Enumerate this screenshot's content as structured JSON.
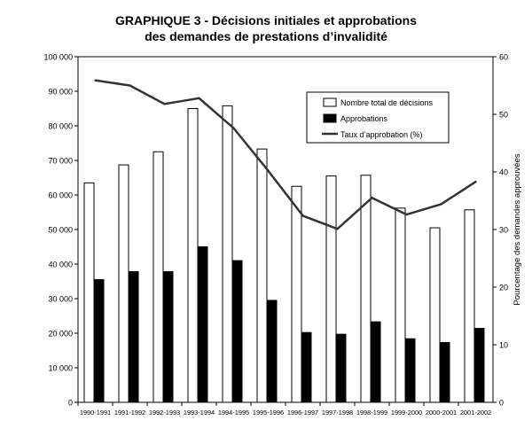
{
  "chart_data": {
    "type": "bar",
    "title_line1": "GRAPHIQUE 3 - Décisions initiales et approbations",
    "title_line2": "des demandes de prestations d’invalidité",
    "xlabel": "",
    "ylabel": "",
    "y2label": "Pourcentage des demandes approuvées",
    "ylim": [
      0,
      100000
    ],
    "y2lim": [
      0,
      60
    ],
    "yticks": [
      "0",
      "10 000",
      "20 000",
      "30 000",
      "40 000",
      "50 000",
      "60 000",
      "70 000",
      "80 000",
      "90 000",
      "100 000"
    ],
    "y2ticks": [
      "0",
      "10",
      "20",
      "30",
      "40",
      "50",
      "60"
    ],
    "categories": [
      "1990-1991",
      "1991-1992",
      "1992-1993",
      "1993-1994",
      "1994-1995",
      "1995-1996",
      "1996-1997",
      "1997-1998",
      "1998-1999",
      "1999-2000",
      "2000-2001",
      "2001-2002"
    ],
    "series": [
      {
        "name": "Nombre total de décisions",
        "kind": "bar",
        "color": "#ffffff",
        "values": [
          63500,
          68700,
          72500,
          85000,
          85800,
          73300,
          62500,
          65500,
          65700,
          56200,
          50500,
          55700
        ]
      },
      {
        "name": "Approbations",
        "kind": "bar",
        "color": "#000000",
        "values": [
          35500,
          37800,
          37800,
          45000,
          41000,
          29500,
          20200,
          19700,
          23300,
          18400,
          17300,
          21400
        ]
      },
      {
        "name": "Taux d’approbation  (%)",
        "kind": "line",
        "axis": "right",
        "color": "#333333",
        "values": [
          55.9,
          55.0,
          51.8,
          52.8,
          47.6,
          40.2,
          32.4,
          30.1,
          35.5,
          32.6,
          34.4,
          38.3
        ]
      }
    ],
    "legend_position": "top-right",
    "grid": false
  }
}
